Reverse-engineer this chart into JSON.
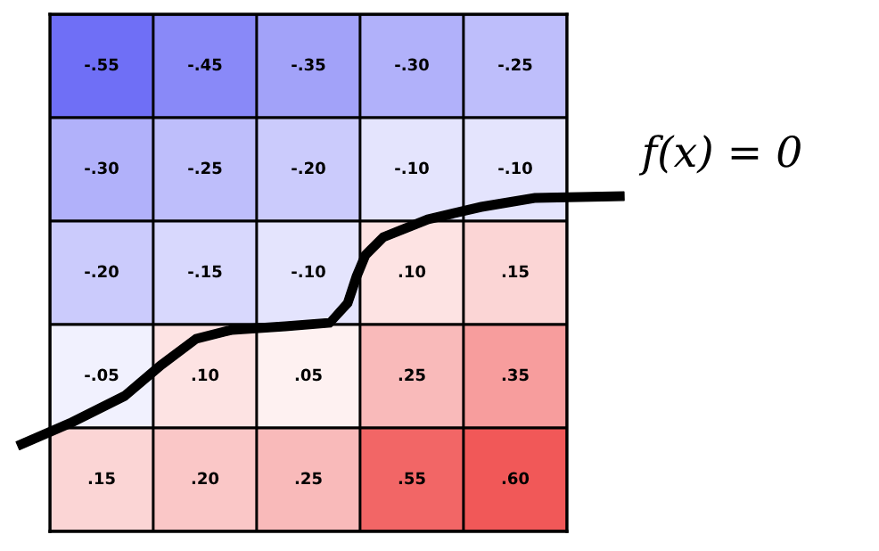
{
  "chart_data": {
    "type": "heatmap",
    "categories": [
      null,
      null,
      null,
      null,
      null
    ],
    "y_categories": [
      null,
      null,
      null,
      null,
      null
    ],
    "cells": [
      [
        -0.55,
        -0.45,
        -0.35,
        -0.3,
        -0.25
      ],
      [
        -0.3,
        -0.25,
        -0.2,
        -0.1,
        -0.1
      ],
      [
        -0.2,
        -0.15,
        -0.1,
        0.1,
        0.15
      ],
      [
        -0.05,
        0.1,
        0.05,
        0.25,
        0.35
      ],
      [
        0.15,
        0.2,
        0.25,
        0.55,
        0.6
      ]
    ],
    "cell_labels": [
      [
        "-.55",
        "-.45",
        "-.35",
        "-.30",
        "-.25"
      ],
      [
        "-.30",
        "-.25",
        "-.20",
        "-.10",
        "-.10"
      ],
      [
        "-.20",
        "-.15",
        "-.10",
        ".10",
        ".15"
      ],
      [
        "-.05",
        ".10",
        ".05",
        ".25",
        ".35"
      ],
      [
        ".15",
        ".20",
        ".25",
        ".55",
        ".60"
      ]
    ],
    "annotations": [
      "f(x) = 0"
    ]
  }
}
